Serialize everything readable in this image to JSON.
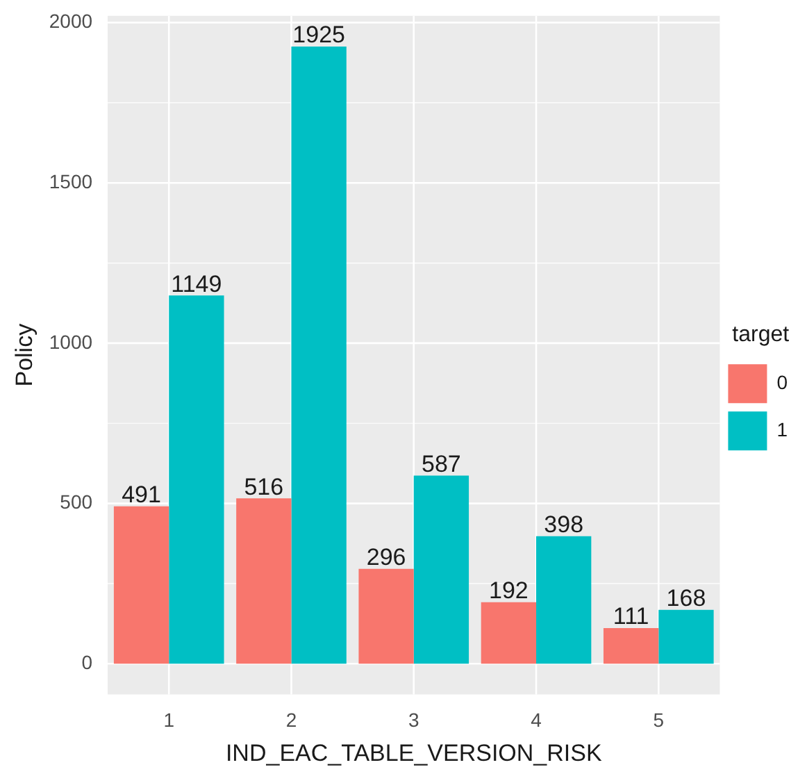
{
  "chart_data": {
    "type": "bar",
    "xlabel": "IND_EAC_TABLE_VERSION_RISK",
    "ylabel": "Policy",
    "legend_title": "target",
    "categories": [
      "1",
      "2",
      "3",
      "4",
      "5"
    ],
    "series": [
      {
        "name": "0",
        "color": "#f8766d",
        "values": [
          491,
          516,
          296,
          192,
          111
        ]
      },
      {
        "name": "1",
        "color": "#00bfc4",
        "values": [
          1149,
          1925,
          587,
          398,
          168
        ]
      }
    ],
    "ylim": [
      -96,
      2021
    ],
    "yticks": [
      0,
      500,
      1000,
      1500,
      2000
    ],
    "grid": true,
    "legend": "right",
    "data_labels": true
  }
}
